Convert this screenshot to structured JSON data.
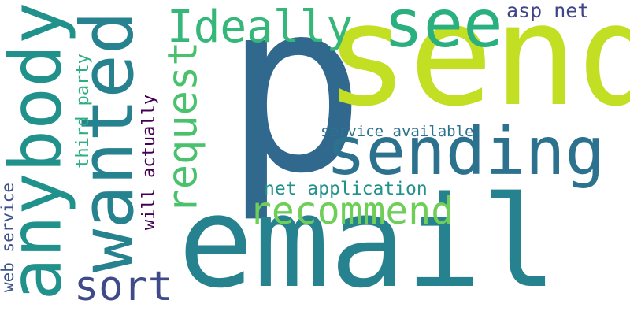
{
  "words": [
    {
      "key": "p",
      "text": "p",
      "color": "#31688e",
      "rotated": false
    },
    {
      "key": "send",
      "text": "send",
      "color": "#c2df23",
      "rotated": false
    },
    {
      "key": "email",
      "text": "email",
      "color": "#26828e",
      "rotated": false
    },
    {
      "key": "sending",
      "text": "sending",
      "color": "#2c728e",
      "rotated": false
    },
    {
      "key": "anybody",
      "text": "anybody",
      "color": "#21918c",
      "rotated": true
    },
    {
      "key": "wanted",
      "text": "wanted",
      "color": "#26828e",
      "rotated": true
    },
    {
      "key": "see",
      "text": "see",
      "color": "#2ab07f",
      "rotated": false
    },
    {
      "key": "ideally",
      "text": "Ideally",
      "color": "#35b779",
      "rotated": false
    },
    {
      "key": "request",
      "text": "request",
      "color": "#4ac16d",
      "rotated": true
    },
    {
      "key": "recommend",
      "text": "recommend",
      "color": "#6ece58",
      "rotated": false
    },
    {
      "key": "sort",
      "text": "sort",
      "color": "#3e4a89",
      "rotated": false
    },
    {
      "key": "asp_net",
      "text": "asp net",
      "color": "#414487",
      "rotated": false
    },
    {
      "key": "third_party",
      "text": "third party",
      "color": "#2ab07f",
      "rotated": true
    },
    {
      "key": "will_actually",
      "text": "will actually",
      "color": "#440154",
      "rotated": true
    },
    {
      "key": "service_available",
      "text": "service available",
      "color": "#2c728e",
      "rotated": false
    },
    {
      "key": "net_application",
      "text": "net application",
      "color": "#21918c",
      "rotated": false
    },
    {
      "key": "web_service",
      "text": "web service",
      "color": "#3b528b",
      "rotated": true
    }
  ]
}
